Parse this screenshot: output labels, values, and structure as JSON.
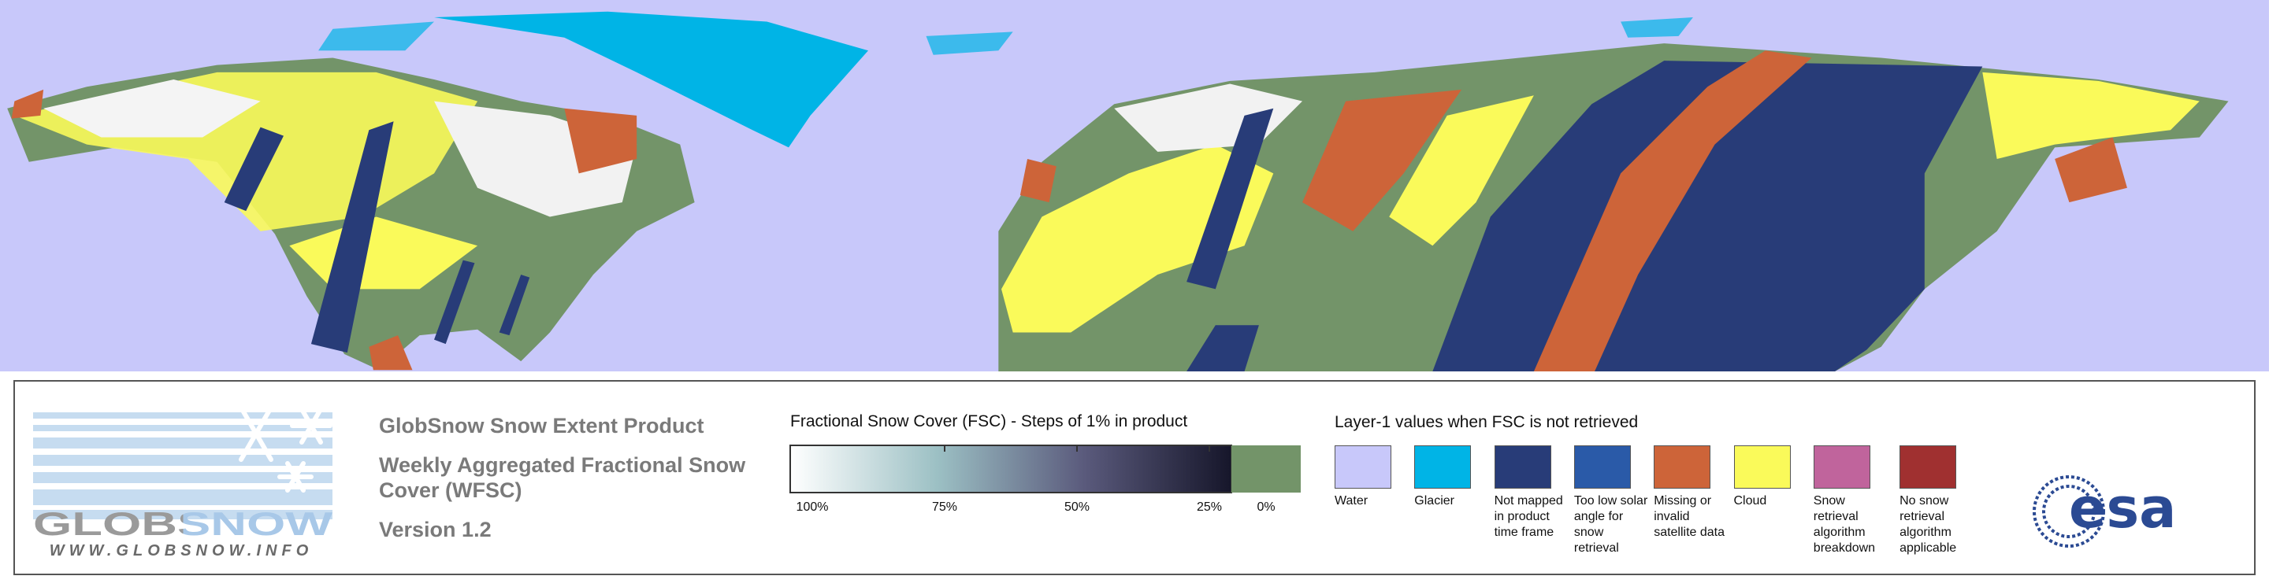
{
  "logo": {
    "wordmark": "GLOBSNOW",
    "url": "WWW.GLOBSNOW.INFO"
  },
  "product": {
    "title": "GlobSnow Snow Extent Product",
    "subtitle": "Weekly Aggregated Fractional Snow Cover (WFSC)",
    "version": "Version 1.2"
  },
  "colorbar": {
    "title": "Fractional Snow Cover (FSC) - Steps of 1% in product",
    "ticks": [
      "100%",
      "75%",
      "50%",
      "25%",
      "0%"
    ],
    "gradient": [
      "#ffffff",
      "#9cc0c4",
      "#5a5a7c",
      "#16162a"
    ],
    "zero_color": "#739469"
  },
  "layer1": {
    "title": "Layer-1 values when FSC is not retrieved",
    "items": [
      {
        "label": "Water",
        "color": "#c8c8fa"
      },
      {
        "label": "Glacier",
        "color": "#00b4e6"
      },
      {
        "label": "Not mapped in product time frame",
        "color": "#283c78"
      },
      {
        "label": "Too low solar angle for snow retrieval",
        "color": "#2a5aa8"
      },
      {
        "label": "Missing or invalid satellite data",
        "color": "#cd6439"
      },
      {
        "label": "Cloud",
        "color": "#fafa5a"
      },
      {
        "label": "Snow retrieval algorithm breakdown",
        "color": "#c0649c"
      },
      {
        "label": "No snow retrieval algorithm applicable",
        "color": "#a03030"
      }
    ]
  },
  "agency": "esa"
}
